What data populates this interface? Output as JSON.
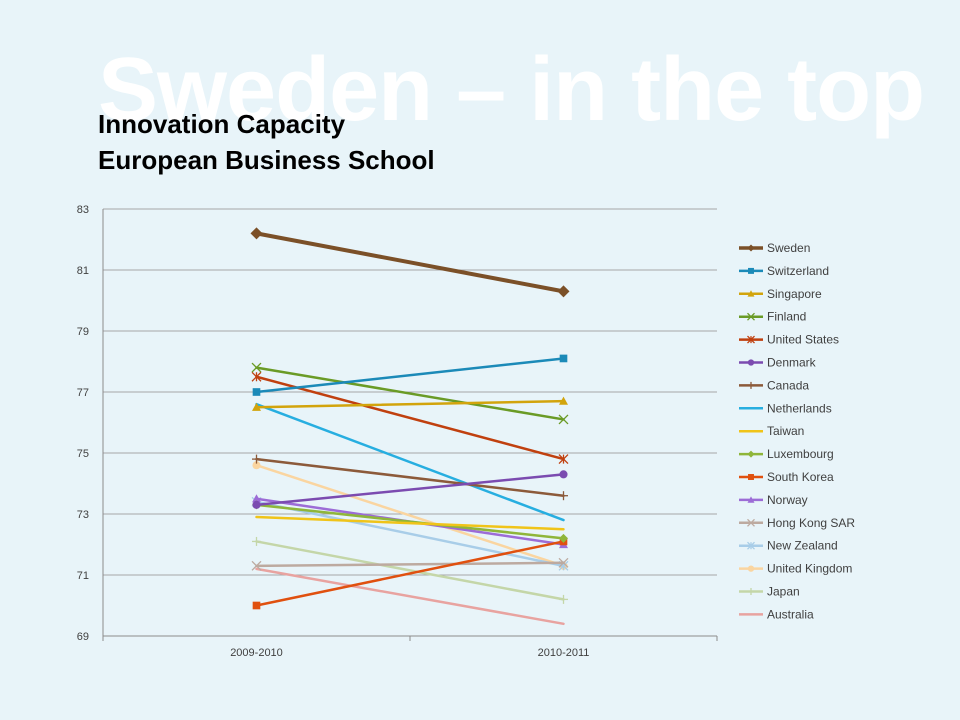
{
  "slide": {
    "background_title": "Sweden – in the top",
    "background_color": "#e8f4f9"
  },
  "chart_data": {
    "type": "line",
    "title": [
      "Innovation Capacity",
      "European Business School"
    ],
    "categories": [
      "2009-2010",
      "2010-2011"
    ],
    "ylim": [
      69,
      83
    ],
    "yticks": [
      "69",
      "71",
      "73",
      "75",
      "77",
      "79",
      "81",
      "83"
    ],
    "grid": true,
    "legend_position": "right",
    "series": [
      {
        "name": "Sweden",
        "values": [
          82.2,
          80.3
        ],
        "color": "#7b5028",
        "marker": "diamond",
        "width": 4
      },
      {
        "name": "Switzerland",
        "values": [
          77.0,
          78.1
        ],
        "color": "#1b8ab8",
        "marker": "square",
        "width": 2.5
      },
      {
        "name": "Singapore",
        "values": [
          76.5,
          76.7
        ],
        "color": "#d2a40c",
        "marker": "triangle",
        "width": 2.5
      },
      {
        "name": "Finland",
        "values": [
          77.8,
          76.1
        ],
        "color": "#6a9b26",
        "marker": "x",
        "width": 2.5
      },
      {
        "name": "United States",
        "values": [
          77.5,
          74.8
        ],
        "color": "#c0400f",
        "marker": "star",
        "width": 2.5
      },
      {
        "name": "Denmark",
        "values": [
          73.3,
          74.3
        ],
        "color": "#7b4bb0",
        "marker": "circle",
        "width": 2.5
      },
      {
        "name": "Canada",
        "values": [
          74.8,
          73.6
        ],
        "color": "#8c5a3a",
        "marker": "plus",
        "width": 2.5
      },
      {
        "name": "Netherlands",
        "values": [
          76.6,
          72.8
        ],
        "color": "#27aee0",
        "marker": "none",
        "width": 2.5
      },
      {
        "name": "Taiwan",
        "values": [
          72.9,
          72.5
        ],
        "color": "#f0c419",
        "marker": "none",
        "width": 2.5
      },
      {
        "name": "Luxembourg",
        "values": [
          73.3,
          72.2
        ],
        "color": "#8fb63a",
        "marker": "diamond",
        "width": 2.5
      },
      {
        "name": "South Korea",
        "values": [
          70.0,
          72.1
        ],
        "color": "#e0500f",
        "marker": "square",
        "width": 2.5
      },
      {
        "name": "Norway",
        "values": [
          73.5,
          72.0
        ],
        "color": "#9c6cd6",
        "marker": "triangle",
        "width": 2.5
      },
      {
        "name": "Hong Kong SAR",
        "values": [
          71.3,
          71.4
        ],
        "color": "#bdaaa0",
        "marker": "x",
        "width": 2.5
      },
      {
        "name": "New Zealand",
        "values": [
          73.4,
          71.3
        ],
        "color": "#a8cde8",
        "marker": "star",
        "width": 2.5
      },
      {
        "name": "United Kingdom",
        "values": [
          74.6,
          71.3
        ],
        "color": "#fad5a0",
        "marker": "circle",
        "width": 2.5
      },
      {
        "name": "Japan",
        "values": [
          72.1,
          70.2
        ],
        "color": "#c4d6a8",
        "marker": "plus",
        "width": 2.5
      },
      {
        "name": "Australia",
        "values": [
          71.2,
          69.4
        ],
        "color": "#e8a3a0",
        "marker": "none",
        "width": 2.5
      }
    ]
  }
}
